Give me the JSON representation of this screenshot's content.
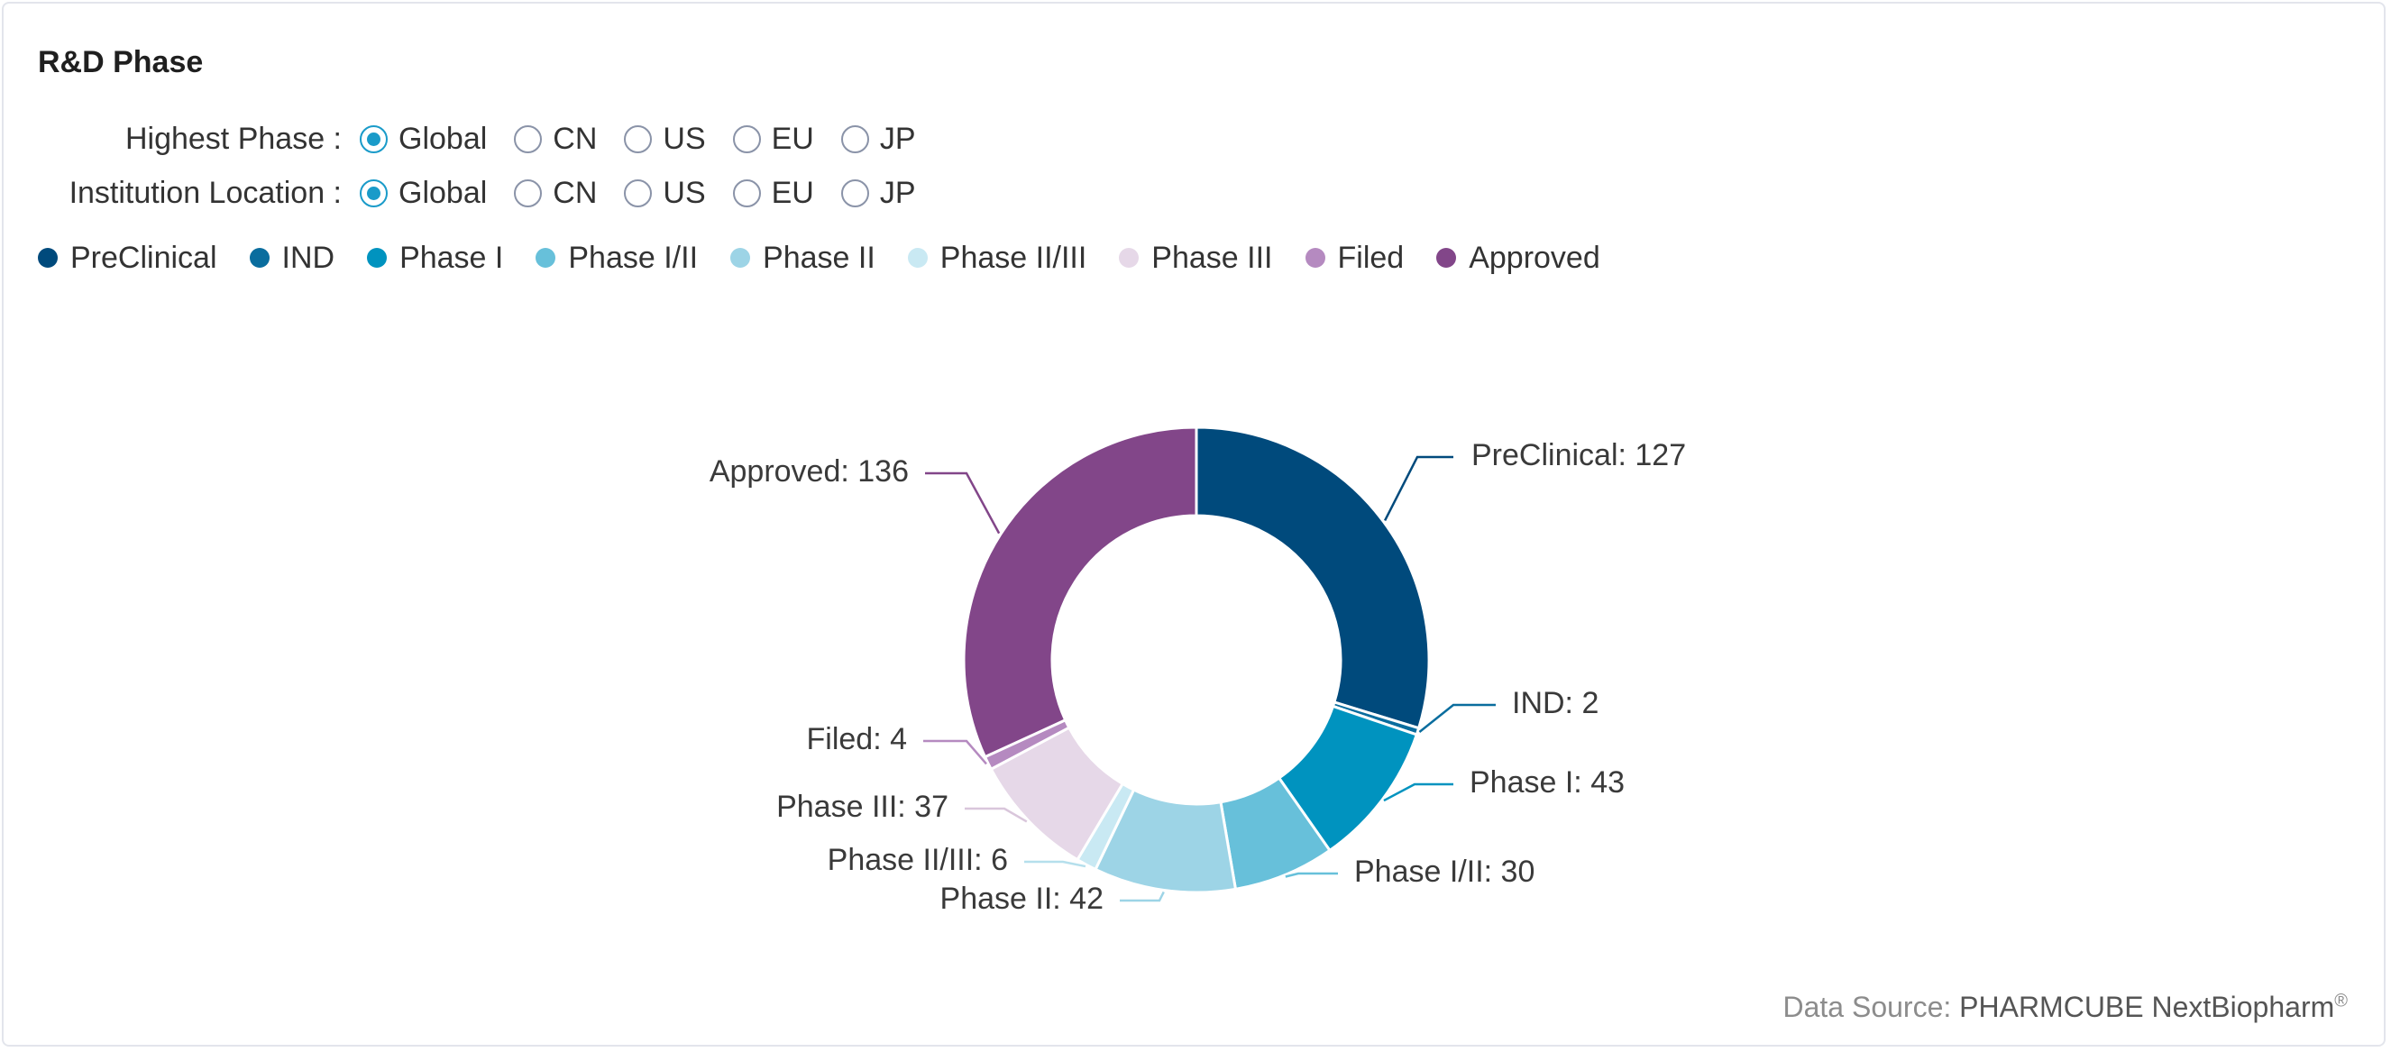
{
  "title": "R&D Phase",
  "filters": [
    {
      "label": "Highest Phase :",
      "options": [
        "Global",
        "CN",
        "US",
        "EU",
        "JP"
      ],
      "selected": 0
    },
    {
      "label": "Institution Location :",
      "options": [
        "Global",
        "CN",
        "US",
        "EU",
        "JP"
      ],
      "selected": 0
    }
  ],
  "source": {
    "label": "Data Source:",
    "value": "PHARMCUBE NextBiopharm",
    "mark": "®"
  },
  "chart_data": {
    "type": "pie",
    "donut": true,
    "legend_position": "top-left",
    "categories": [
      "PreClinical",
      "IND",
      "Phase I",
      "Phase I/II",
      "Phase II",
      "Phase II/III",
      "Phase III",
      "Filed",
      "Approved"
    ],
    "values": [
      127,
      2,
      43,
      30,
      42,
      6,
      37,
      4,
      136
    ],
    "labels": [
      "PreClinical: 127",
      "IND: 2",
      "Phase I: 43",
      "Phase I/II: 30",
      "Phase II: 42",
      "Phase II/III: 6",
      "Phase III: 37",
      "Filed: 4",
      "Approved: 136"
    ],
    "colors": [
      "#004a7c",
      "#0a6d9e",
      "#0093bf",
      "#67c0da",
      "#9dd4e6",
      "#c9e9f3",
      "#e6d8e8",
      "#b58ac0",
      "#824689"
    ]
  }
}
